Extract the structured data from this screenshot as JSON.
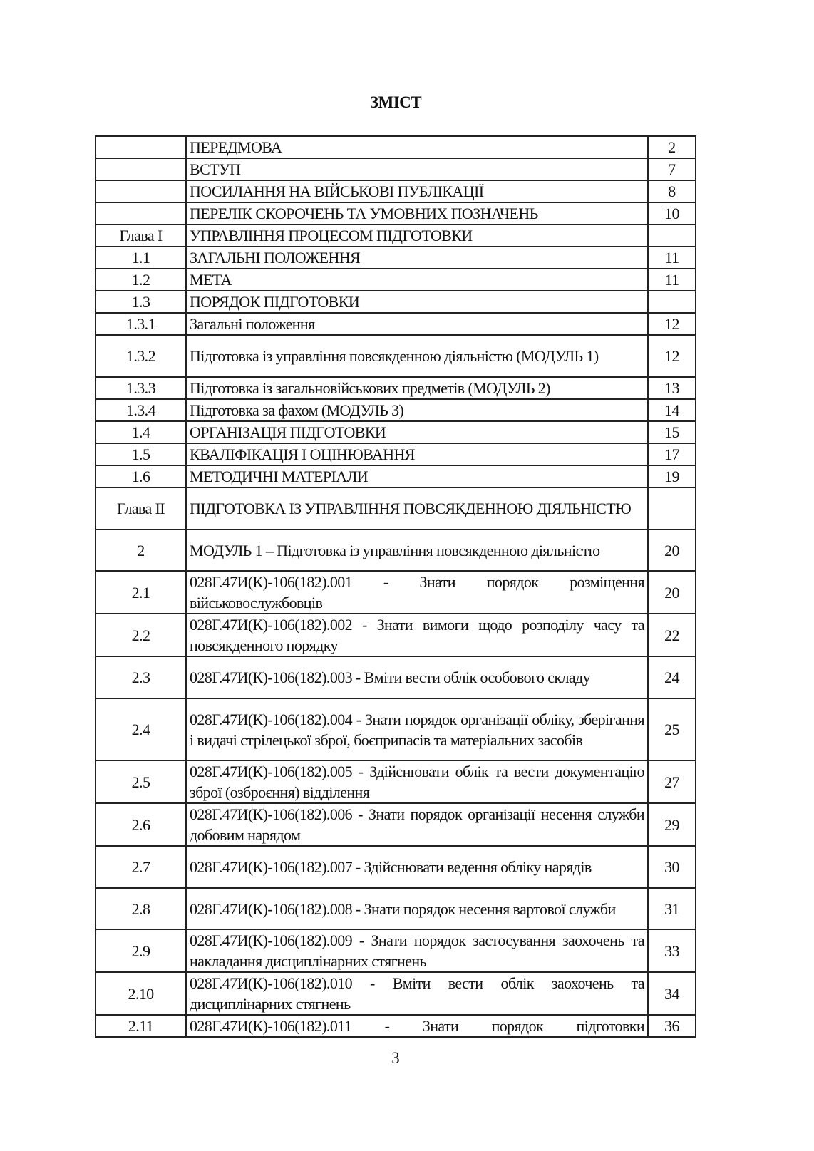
{
  "title": "ЗМІСТ",
  "page_number": "3",
  "rows": [
    {
      "num": "",
      "title": "ПЕРЕДМОВА",
      "page": "2"
    },
    {
      "num": "",
      "title": "ВСТУП",
      "page": "7"
    },
    {
      "num": "",
      "title": "ПОСИЛАННЯ НА ВІЙСЬКОВІ ПУБЛІКАЦІЇ",
      "page": "8"
    },
    {
      "num": "",
      "title": "ПЕРЕЛІК СКОРОЧЕНЬ ТА УМОВНИХ ПОЗНАЧЕНЬ",
      "page": "10"
    },
    {
      "num": "Глава І",
      "title": "УПРАВЛІННЯ ПРОЦЕСОМ ПІДГОТОВКИ",
      "page": ""
    },
    {
      "num": "1.1",
      "title": "ЗАГАЛЬНІ ПОЛОЖЕННЯ",
      "page": "11"
    },
    {
      "num": "1.2",
      "title": "МЕТА",
      "page": "11"
    },
    {
      "num": "1.3",
      "title": "ПОРЯДОК ПІДГОТОВКИ",
      "page": ""
    },
    {
      "num": "1.3.1",
      "title": "Загальні положення",
      "page": "12"
    },
    {
      "num": "1.3.2",
      "title": "Підготовка із управління повсякденною діяльністю (МОДУЛЬ 1)",
      "page": "12"
    },
    {
      "num": "1.3.3",
      "title": "Підготовка із загальновійськових предметів (МОДУЛЬ 2)",
      "page": "13"
    },
    {
      "num": "1.3.4",
      "title": "Підготовка за фахом (МОДУЛЬ 3)",
      "page": "14"
    },
    {
      "num": "1.4",
      "title": "ОРГАНІЗАЦІЯ ПІДГОТОВКИ",
      "page": "15"
    },
    {
      "num": "1.5",
      "title": "КВАЛІФІКАЦІЯ І ОЦІНЮВАННЯ",
      "page": "17"
    },
    {
      "num": "1.6",
      "title": "МЕТОДИЧНІ МАТЕРІАЛИ",
      "page": "19"
    },
    {
      "num": "Глава ІІ",
      "title": "ПІДГОТОВКА ІЗ УПРАВЛІННЯ ПОВСЯКДЕННОЮ ДІЯЛЬНІСТЮ",
      "page": ""
    },
    {
      "num": "2",
      "title": "МОДУЛЬ 1 – Підготовка із управління повсякденною діяльністю",
      "page": "20"
    },
    {
      "num": "2.1",
      "title": "028Г.47И(К)-106(182).001 - Знати порядок розміщення військовослужбовців",
      "page": "20"
    },
    {
      "num": "2.2",
      "title": "028Г.47И(К)-106(182).002 - Знати вимоги щодо розподілу часу та повсякденного порядку",
      "page": "22"
    },
    {
      "num": "2.3",
      "title": "028Г.47И(К)-106(182).003 - Вміти вести облік особового складу",
      "page": "24"
    },
    {
      "num": "2.4",
      "title": "028Г.47И(К)-106(182).004 - Знати порядок організації обліку, зберігання і видачі стрілецької зброї, боєприпасів та матеріальних засобів",
      "page": "25"
    },
    {
      "num": "2.5",
      "title": "028Г.47И(К)-106(182).005 - Здійснювати облік та вести документацію зброї (озброєння) відділення",
      "page": "27"
    },
    {
      "num": "2.6",
      "title": "028Г.47И(К)-106(182).006 - Знати порядок організації несення служби добовим нарядом",
      "page": "29"
    },
    {
      "num": "2.7",
      "title": "028Г.47И(К)-106(182).007 - Здійснювати ведення обліку нарядів",
      "page": "30"
    },
    {
      "num": "2.8",
      "title": "028Г.47И(К)-106(182).008 - Знати порядок несення вартової служби",
      "page": "31"
    },
    {
      "num": "2.9",
      "title": "028Г.47И(К)-106(182).009 - Знати порядок застосування заохочень та накладання дисциплінарних стягнень",
      "page": "33"
    },
    {
      "num": "2.10",
      "title": "028Г.47И(К)-106(182).010 - Вміти вести облік заохочень та дисциплінарних стягнень",
      "page": "34"
    },
    {
      "num": "2.11",
      "title": "028Г.47И(К)-106(182).011 - Знати порядок підготовки",
      "page": "36"
    }
  ]
}
